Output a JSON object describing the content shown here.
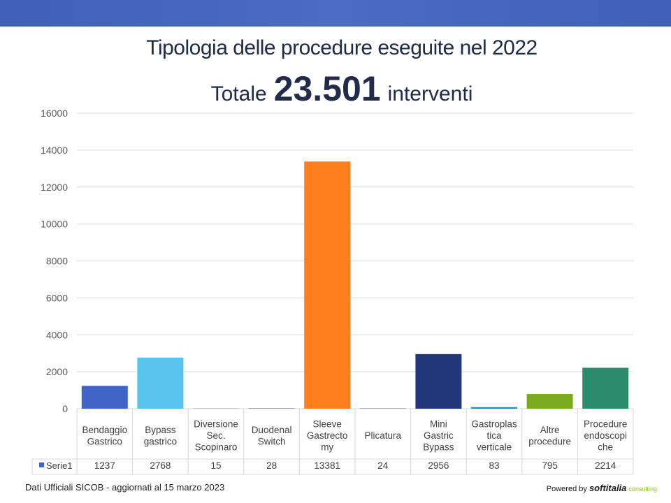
{
  "title": "Tipologia delle procedure eseguite nel 2022",
  "subtitle": {
    "prefix": "Totale",
    "number": "23.501",
    "suffix": "interventi"
  },
  "chart_data": {
    "type": "bar",
    "categories": [
      [
        "Bendaggio",
        "Gastrico"
      ],
      [
        "Bypass",
        "gastrico"
      ],
      [
        "Diversione",
        "Sec.",
        "Scopinaro"
      ],
      [
        "Duodenal",
        "Switch"
      ],
      [
        "Sleeve",
        "Gastrecto",
        "my"
      ],
      [
        "Plicatura"
      ],
      [
        "Mini",
        "Gastric",
        "Bypass"
      ],
      [
        "Gastroplas",
        "tica",
        "verticale"
      ],
      [
        "Altre",
        "procedure"
      ],
      [
        "Procedure",
        "endoscopi",
        "che"
      ]
    ],
    "series": [
      {
        "name": "Serie1",
        "values": [
          1237,
          2768,
          15,
          28,
          13381,
          24,
          2956,
          83,
          795,
          2214
        ],
        "value_labels": [
          "1237",
          "2768",
          "15",
          "28",
          "13381",
          "24",
          "2956",
          "83",
          "795",
          "2214"
        ],
        "colors": [
          "#4063c8",
          "#58c4ee",
          "#7f7f7f",
          "#7f7f7f",
          "#ff7f1e",
          "#7f7f7f",
          "#22377a",
          "#1f8fb5",
          "#7aab1f",
          "#2a8c6c"
        ]
      }
    ],
    "legend_color": "#4063c8",
    "yticks": [
      "0",
      "2000",
      "4000",
      "6000",
      "8000",
      "10000",
      "12000",
      "14000",
      "16000"
    ],
    "ylim": [
      0,
      16000
    ],
    "grid": true,
    "legend": "data-table"
  },
  "footer": {
    "source": "Dati Ufficiali SICOB - aggiornati al 15 marzo 2023",
    "powered_prefix": "Powered by",
    "brand": "softitalia",
    "brand_sub": "consulting"
  }
}
